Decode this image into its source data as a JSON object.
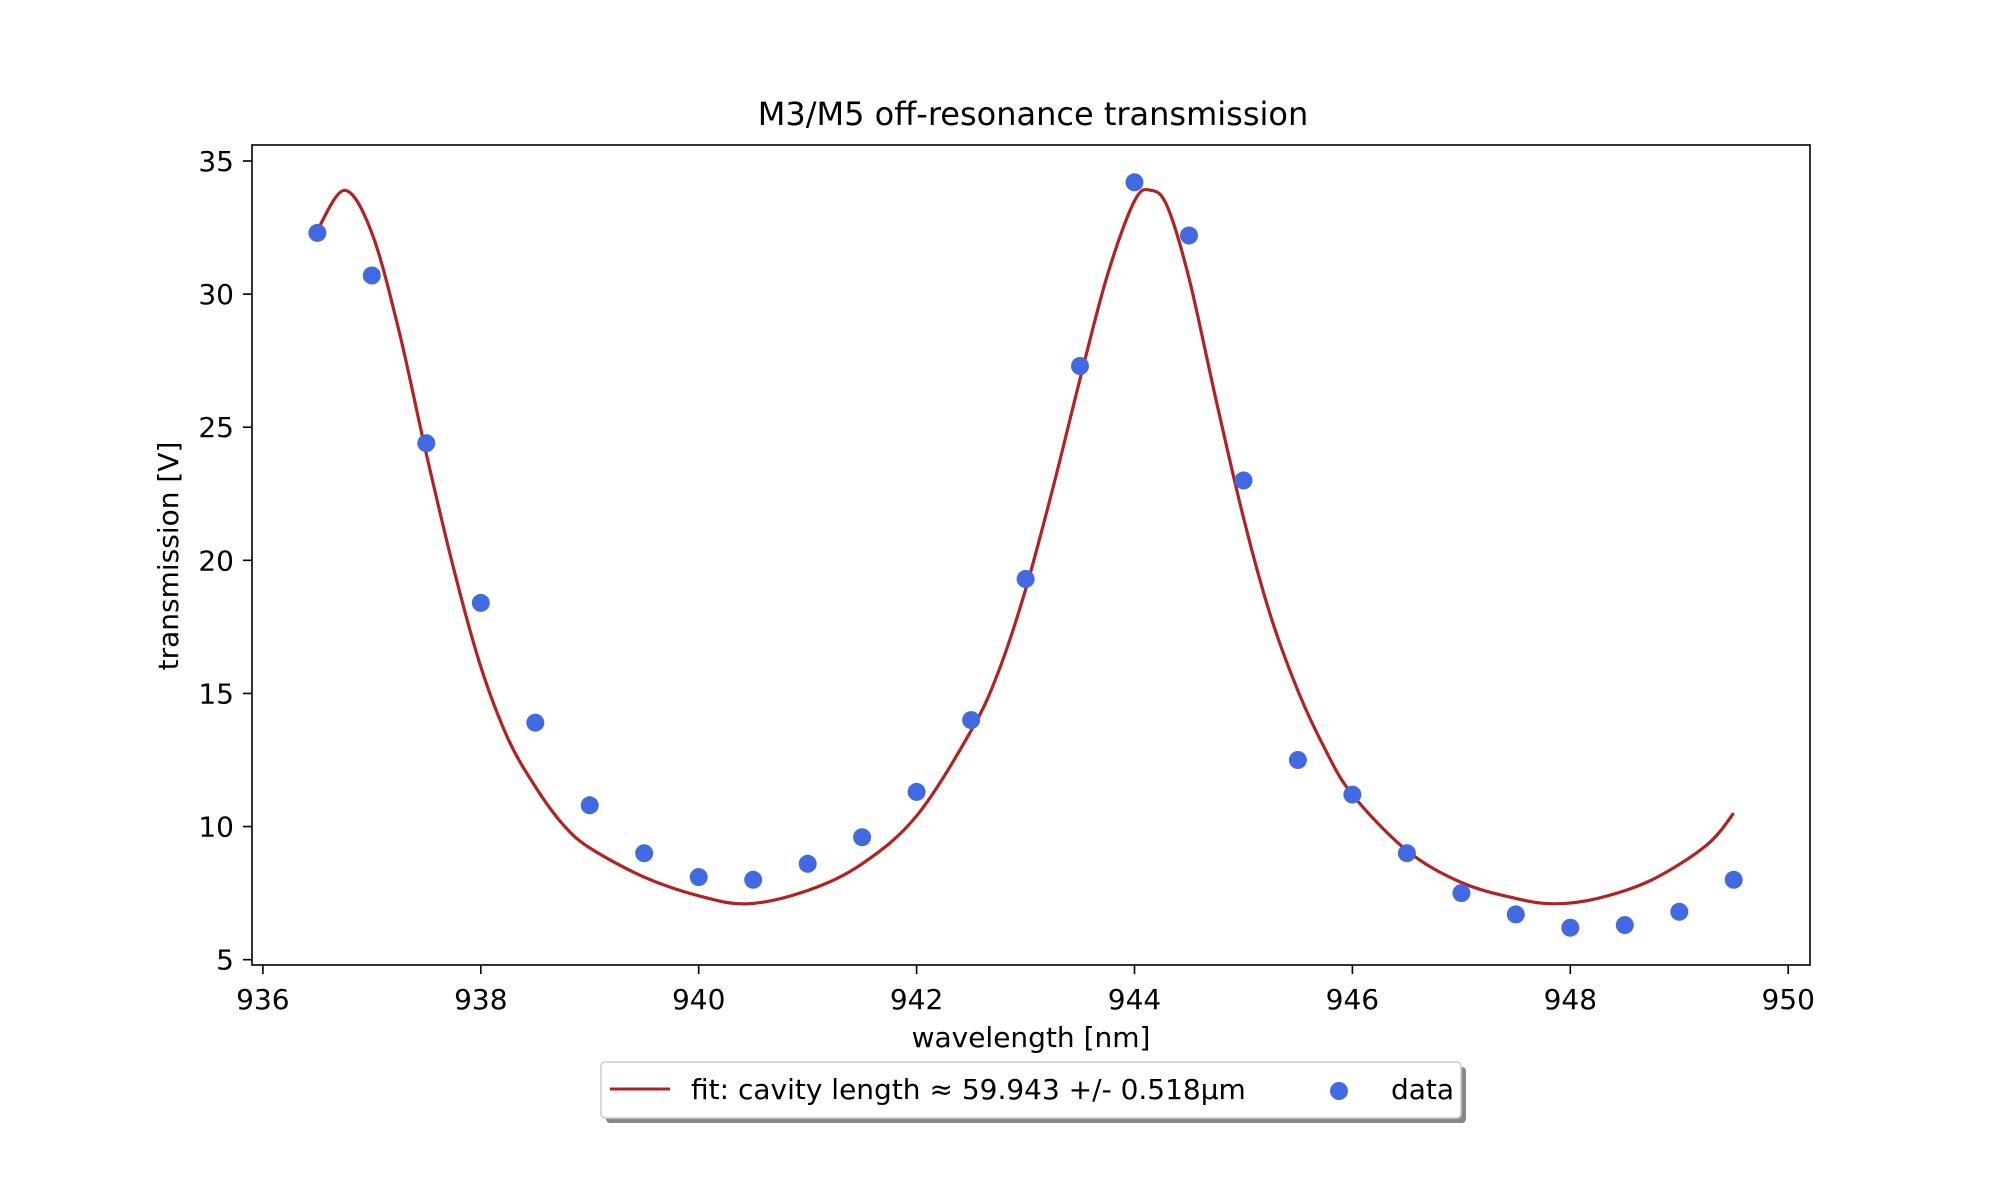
{
  "chart_data": {
    "type": "scatter",
    "title": "M3/M5 off-resonance transmission",
    "xlabel": "wavelength [nm]",
    "ylabel": "transmission [V]",
    "xlim": [
      935.9,
      950.2
    ],
    "ylim": [
      4.8,
      35.6
    ],
    "xticks": [
      936,
      938,
      940,
      942,
      944,
      946,
      948,
      950
    ],
    "yticks": [
      5,
      10,
      15,
      20,
      25,
      30,
      35
    ],
    "grid": false,
    "legend_position": "bottom-center, below axes",
    "series": [
      {
        "name": "fit: cavity length ≈ 59.943 +/- 0.518μm",
        "kind": "line",
        "color": "#b22222",
        "x": [
          936.5,
          936.75,
          937.0,
          937.25,
          937.5,
          937.75,
          938.0,
          938.25,
          938.5,
          938.75,
          939.0,
          939.5,
          940.0,
          940.45,
          941.0,
          941.5,
          942.0,
          942.5,
          942.75,
          943.0,
          943.25,
          943.5,
          943.75,
          944.0,
          944.15,
          944.3,
          944.5,
          944.75,
          945.0,
          945.25,
          945.5,
          945.75,
          946.0,
          946.5,
          947.0,
          947.5,
          947.85,
          948.25,
          948.75,
          949.25,
          949.5
        ],
        "y": [
          32.4,
          33.9,
          32.3,
          28.6,
          24.0,
          19.7,
          16.0,
          13.3,
          11.5,
          10.1,
          9.2,
          8.1,
          7.4,
          7.1,
          7.6,
          8.6,
          10.4,
          13.6,
          15.8,
          18.9,
          22.7,
          26.8,
          30.7,
          33.5,
          33.9,
          33.3,
          30.6,
          26.0,
          21.6,
          17.9,
          15.1,
          12.9,
          11.2,
          9.1,
          7.9,
          7.3,
          7.1,
          7.3,
          8.0,
          9.3,
          10.5
        ]
      },
      {
        "name": "data",
        "kind": "scatter",
        "color": "#4169e1",
        "x": [
          936.5,
          937.0,
          937.5,
          938.0,
          938.5,
          939.0,
          939.5,
          940.0,
          940.5,
          941.0,
          941.5,
          942.0,
          942.5,
          943.0,
          943.5,
          944.0,
          944.5,
          945.0,
          945.5,
          946.0,
          946.5,
          947.0,
          947.5,
          948.0,
          948.5,
          949.0,
          949.5
        ],
        "y": [
          32.3,
          30.7,
          24.4,
          18.4,
          13.9,
          10.8,
          9.0,
          8.1,
          8.0,
          8.6,
          9.6,
          11.3,
          14.0,
          19.3,
          27.3,
          34.2,
          32.2,
          23.0,
          12.5,
          11.2,
          9.0,
          7.5,
          6.7,
          6.2,
          6.3,
          6.8,
          8.0
        ]
      }
    ]
  }
}
